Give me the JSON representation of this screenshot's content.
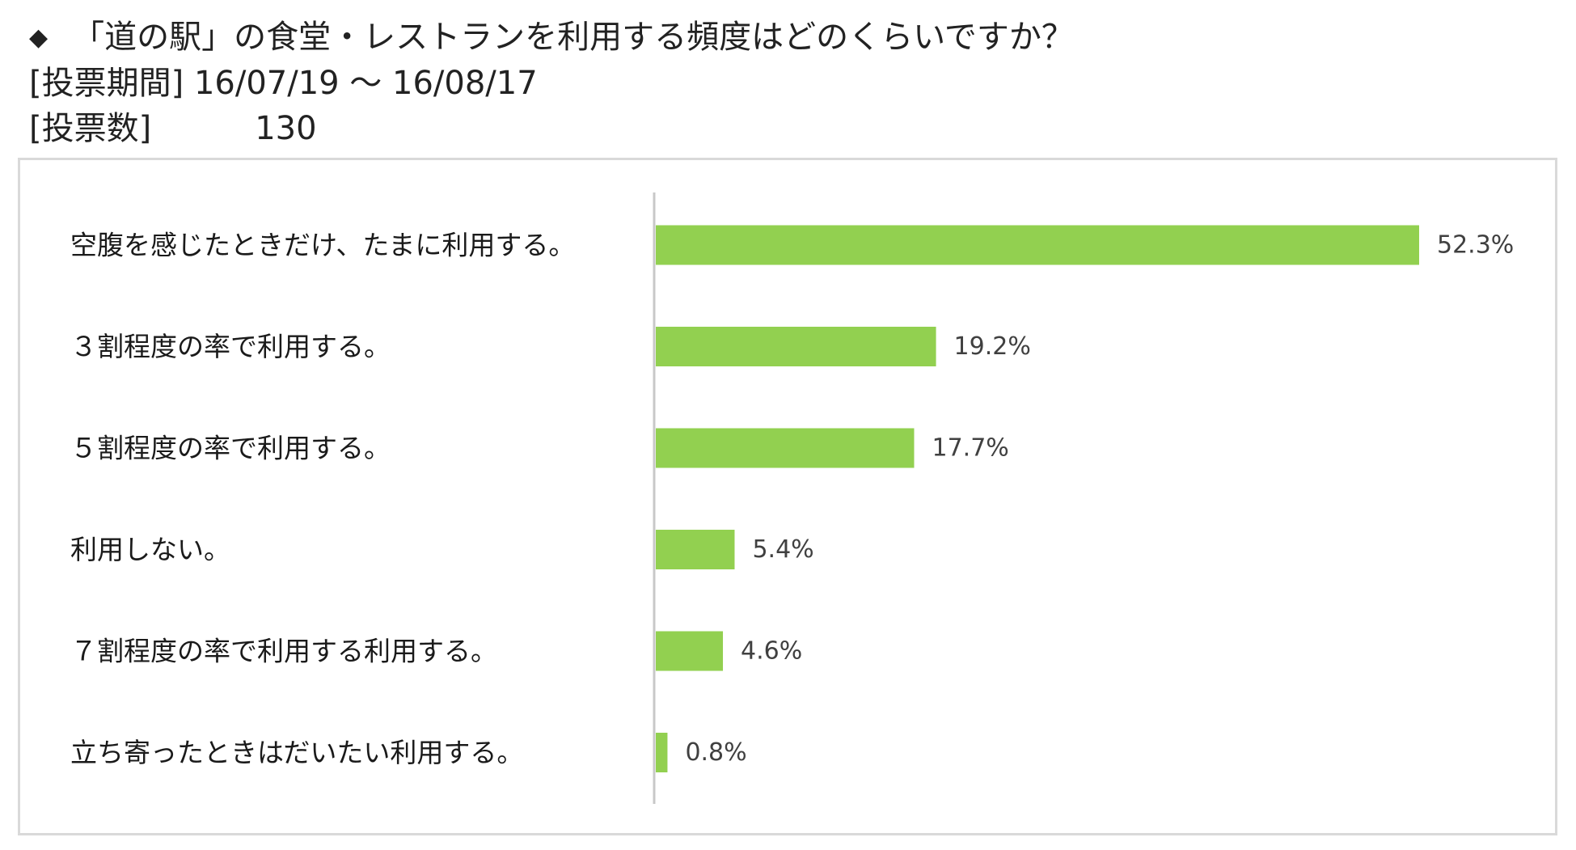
{
  "header": {
    "marker": "◆",
    "question": "「道の駅」の食堂・レストランを利用する頻度はどのくらいですか？",
    "period_label": "[投票期間]",
    "period_value": "16/07/19 ～ 16/08/17",
    "votes_label": "[投票数]",
    "votes_value": "130"
  },
  "colors": {
    "bar": "#92d050",
    "axis": "#c8c8c8",
    "frame": "#d9d9d9"
  },
  "chart_data": {
    "type": "bar",
    "orientation": "horizontal",
    "categories": [
      "空腹を感じたときだけ、たまに利用する。",
      "３割程度の率で利用する。",
      "５割程度の率で利用する。",
      "利用しない。",
      "７割程度の率で利用する利用する。",
      "立ち寄ったときはだいたい利用する。"
    ],
    "values": [
      52.3,
      19.2,
      17.7,
      5.4,
      4.6,
      0.8
    ],
    "value_labels": [
      "52.3%",
      "19.2%",
      "17.7%",
      "5.4%",
      "4.6%",
      "0.8%"
    ],
    "unit": "%",
    "title": "",
    "xlabel": "",
    "ylabel": "",
    "grid": false,
    "legend": "none"
  }
}
